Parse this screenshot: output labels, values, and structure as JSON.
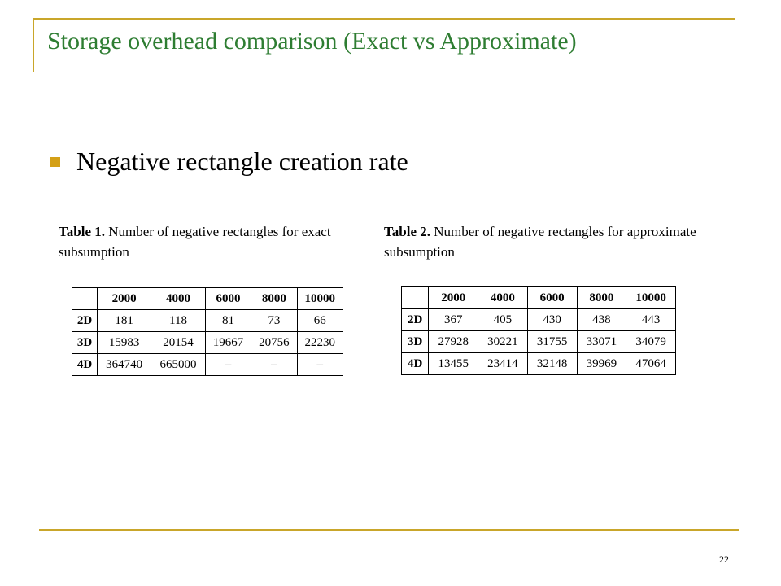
{
  "slide": {
    "title": "Storage overhead comparison (Exact vs Approximate)",
    "bullet": "Negative rectangle creation rate",
    "page_number": "22"
  },
  "table1": {
    "label": "Table 1.",
    "caption": "Number of negative rectangles for exact subsumption",
    "columns": [
      "2000",
      "4000",
      "6000",
      "8000",
      "10000"
    ],
    "rows": [
      {
        "label": "2D",
        "values": [
          "181",
          "118",
          "81",
          "73",
          "66"
        ]
      },
      {
        "label": "3D",
        "values": [
          "15983",
          "20154",
          "19667",
          "20756",
          "22230"
        ]
      },
      {
        "label": "4D",
        "values": [
          "364740",
          "665000",
          "–",
          "–",
          "–"
        ]
      }
    ]
  },
  "table2": {
    "label": "Table 2.",
    "caption": "Number of negative rectangles for approximate subsumption",
    "columns": [
      "2000",
      "4000",
      "6000",
      "8000",
      "10000"
    ],
    "rows": [
      {
        "label": "2D",
        "values": [
          "367",
          "405",
          "430",
          "438",
          "443"
        ]
      },
      {
        "label": "3D",
        "values": [
          "27928",
          "30221",
          "31755",
          "33071",
          "34079"
        ]
      },
      {
        "label": "4D",
        "values": [
          "13455",
          "23414",
          "32148",
          "39969",
          "47064"
        ]
      }
    ]
  },
  "colors": {
    "frame": "#c9a62a",
    "title": "#2e7d32",
    "bullet": "#d4a017"
  }
}
